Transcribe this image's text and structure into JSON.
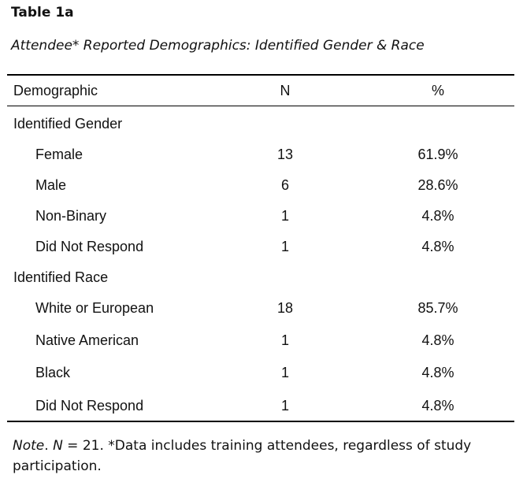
{
  "table_label": "Table 1a",
  "title": "Attendee* Reported Demographics: Identified Gender & Race",
  "headers": [
    "Demographic",
    "N",
    "%"
  ],
  "rows": [
    {
      "label": "Identified Gender",
      "n": "",
      "pct": ""
    },
    {
      "label": "Female",
      "n": "13",
      "pct": "61.9%"
    },
    {
      "label": "Male",
      "n": "6",
      "pct": "28.6%"
    },
    {
      "label": "Non-Binary",
      "n": "1",
      "pct": "4.8%"
    },
    {
      "label": "Did Not Respond",
      "n": "1",
      "pct": "4.8%"
    },
    {
      "label": "Identified Race",
      "n": "",
      "pct": ""
    },
    {
      "label": "White or European",
      "n": "18",
      "pct": "85.7%"
    },
    {
      "label": "Native American",
      "n": "1",
      "pct": "4.8%"
    },
    {
      "label": "Black",
      "n": "1",
      "pct": "4.8%"
    },
    {
      "label": "Did Not Respond",
      "n": "1",
      "pct": "4.8%"
    }
  ],
  "note": {
    "prefix": "Note",
    "n_symbol": "N",
    "text": " = 21. *Data includes training attendees, regardless of study participation."
  }
}
